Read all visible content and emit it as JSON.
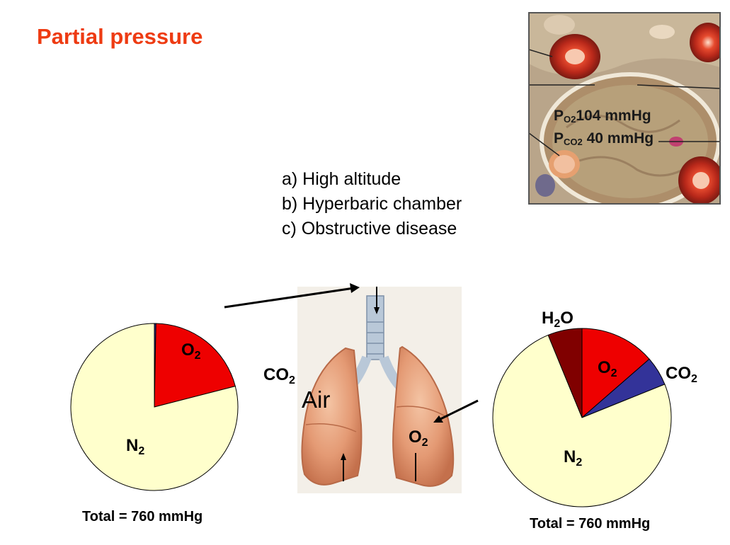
{
  "title": "Partial pressure",
  "conditions": [
    "a) High altitude",
    "b) Hyperbaric chamber",
    "c) Obstructive disease"
  ],
  "inset": {
    "po2_sym": "P",
    "po2_sub": "O2",
    "po2_value": "104 mmHg",
    "pco2_sym": "P",
    "pco2_sub": "CO2",
    "pco2_value": " 40 mmHg"
  },
  "lungs": {
    "air_label": "Air",
    "o2": "O",
    "o2_sub": "2",
    "co2": "CO",
    "co2_sub": "2"
  },
  "left_pie": {
    "n2": "N",
    "n2_sub": "2",
    "o2": "O",
    "o2_sub": "2",
    "total": "Total  = 760 mmHg"
  },
  "right_pie": {
    "n2": "N",
    "n2_sub": "2",
    "o2": "O",
    "o2_sub": "2",
    "co2": "CO",
    "co2_sub": "2",
    "h2o_pre": "H",
    "h2o_sub": "2",
    "h2o_post": "O",
    "total": "Total  = 760 mmHg"
  },
  "colors": {
    "title": "#ee3b12",
    "n2": "#ffffcc",
    "o2": "#ee0000",
    "co2": "#333399",
    "h2o": "#800000",
    "lung": "#e8a07a"
  },
  "chart_data": [
    {
      "type": "pie",
      "series": [
        {
          "name": "",
          "values": [
            {
              "label": "N2",
              "value": 79,
              "color": "#ffffcc"
            },
            {
              "label": "O2",
              "value": 20.7,
              "color": "#ee0000"
            },
            {
              "label": "CO2",
              "value": 0.3,
              "color": "#333399"
            }
          ]
        }
      ]
    },
    {
      "type": "pie",
      "series": [
        {
          "name": "",
          "values": [
            {
              "label": "O2",
              "value": 13.6,
              "color": "#ee0000"
            },
            {
              "label": "CO2",
              "value": 5.3,
              "color": "#333399"
            },
            {
              "label": "N2",
              "value": 74.9,
              "color": "#ffffcc"
            },
            {
              "label": "H2O",
              "value": 6.2,
              "color": "#800000"
            }
          ]
        }
      ]
    }
  ]
}
